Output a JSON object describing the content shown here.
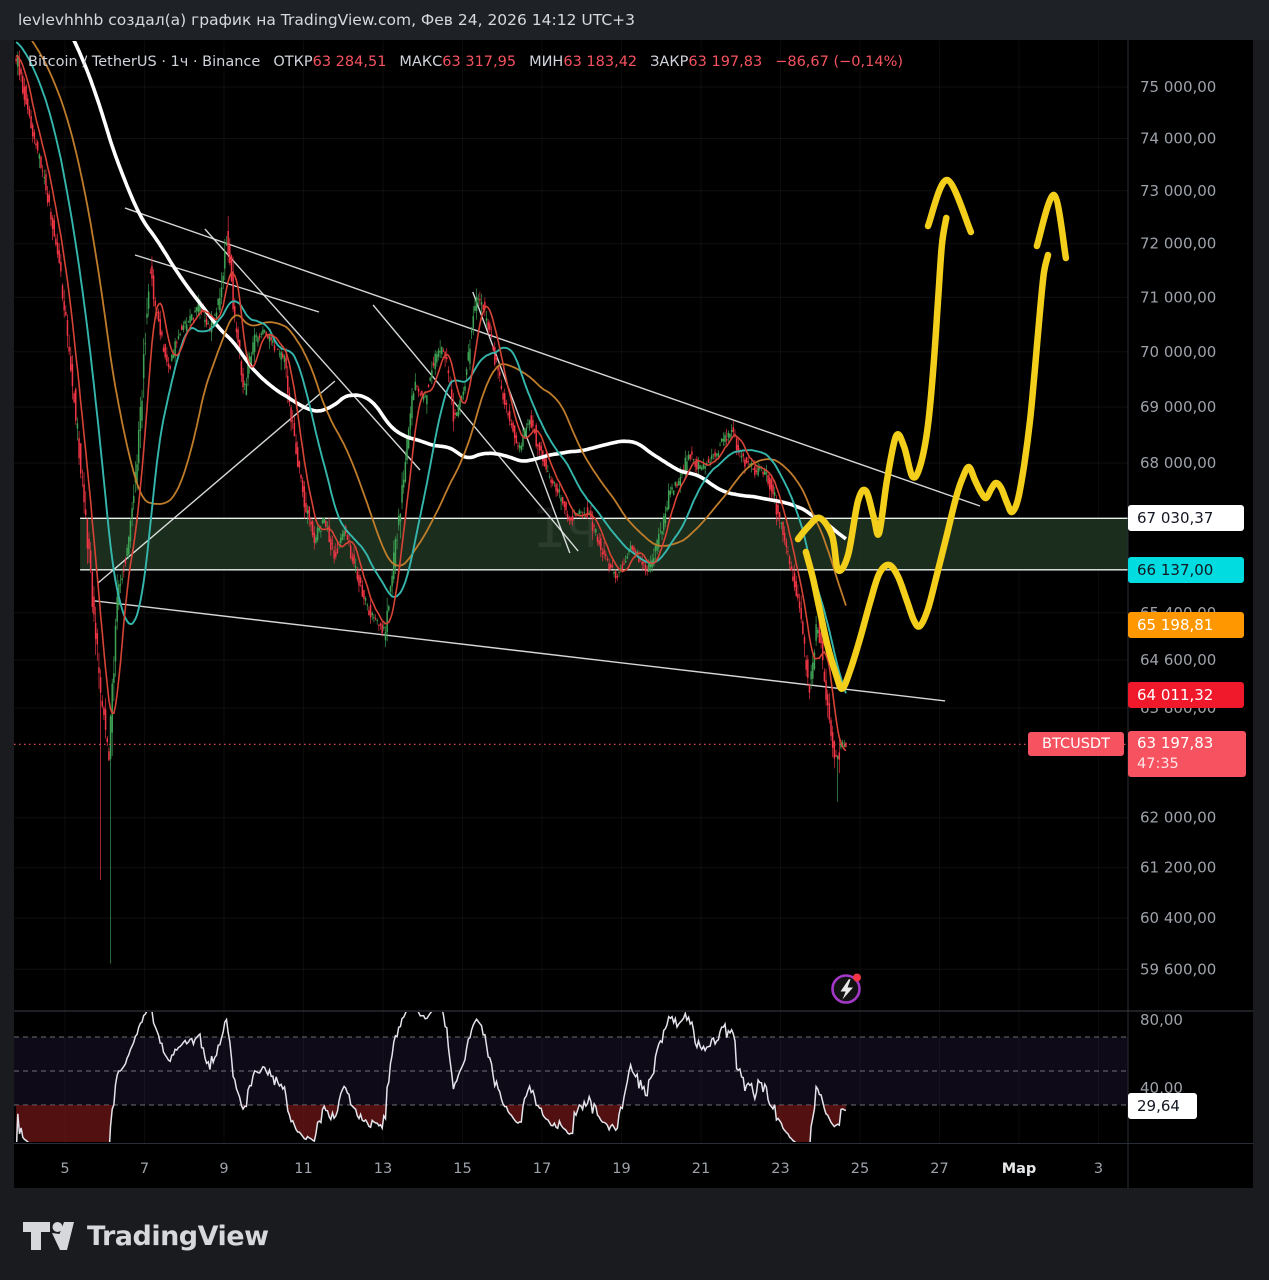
{
  "top_bar": {
    "text": "levlevhhhb создал(а) график на TradingView.com, Фев 24, 2026 14:12 UTC+3"
  },
  "legend": {
    "symbol": "Bitcoin / TetherUS · 1ч · Binance",
    "items": [
      {
        "label": "ОТКР",
        "value": "63 284,51"
      },
      {
        "label": "МАКС",
        "value": "63 317,95"
      },
      {
        "label": "МИН",
        "value": "63 183,42"
      },
      {
        "label": "ЗАКР",
        "value": "63 197,83"
      }
    ],
    "change": "−86,67 (−0,14%)"
  },
  "watermark": "1ч",
  "colors": {
    "up": "#3fa355",
    "down": "#f23645",
    "ma_white": "#ffffff",
    "ma_cyan": "#35b6ac",
    "ma_orange": "#bf7c2a",
    "ma_red": "#d64436",
    "trend": "#eceff0",
    "yellow": "#f3cf1b",
    "zone_fill": "#203622",
    "zone_border": "#eef0f0",
    "axis_text": "#9da2aa",
    "grid": "rgba(255,255,255,0.06)",
    "current_line": "#f7525f",
    "rsi_line": "#e4e4ec",
    "rsi_band": "rgba(116,82,196,0.12)",
    "bubble_ring": "#a438c8",
    "bubble_dot": "#f23645"
  },
  "price_axis": {
    "ticks": [
      {
        "price": 75000,
        "label": "75 000,00"
      },
      {
        "price": 74000,
        "label": "74 000,00"
      },
      {
        "price": 73000,
        "label": "73 000,00"
      },
      {
        "price": 72000,
        "label": "72 000,00"
      },
      {
        "price": 71000,
        "label": "71 000,00"
      },
      {
        "price": 70000,
        "label": "70 000,00"
      },
      {
        "price": 69000,
        "label": "69 000,00"
      },
      {
        "price": 68000,
        "label": "68 000,00"
      },
      {
        "price": 65400,
        "label": "65 400,00"
      },
      {
        "price": 64600,
        "label": "64 600,00"
      },
      {
        "price": 63800,
        "label": "63 800,00"
      },
      {
        "price": 62000,
        "label": "62 000,00"
      },
      {
        "price": 61200,
        "label": "61 200,00"
      },
      {
        "price": 60400,
        "label": "60 400,00"
      },
      {
        "price": 59600,
        "label": "59 600,00"
      }
    ]
  },
  "time_axis": [
    {
      "d": 5,
      "label": "5"
    },
    {
      "d": 7,
      "label": "7"
    },
    {
      "d": 9,
      "label": "9"
    },
    {
      "d": 11,
      "label": "11"
    },
    {
      "d": 13,
      "label": "13"
    },
    {
      "d": 15,
      "label": "15"
    },
    {
      "d": 17,
      "label": "17"
    },
    {
      "d": 19,
      "label": "19"
    },
    {
      "d": 21,
      "label": "21"
    },
    {
      "d": 23,
      "label": "23"
    },
    {
      "d": 25,
      "label": "25"
    },
    {
      "d": 27,
      "label": "27"
    },
    {
      "d": 29,
      "label": "Мар",
      "bold": true
    },
    {
      "d": 31,
      "label": "3"
    }
  ],
  "float_labels": [
    {
      "text": "67 030,37",
      "price": 67030.37,
      "bg": "#ffffff",
      "fg": "#131722"
    },
    {
      "text": "66 137,00",
      "price": 66137.0,
      "bg": "#00dce0",
      "fg": "#131722"
    },
    {
      "text": "65 198,81",
      "price": 65198.81,
      "bg": "#ff9800",
      "fg": "#ffffff"
    },
    {
      "text": "64 011,32",
      "price": 64011.32,
      "bg": "#f0192b",
      "fg": "#ffffff"
    }
  ],
  "current_label": {
    "symbol": "BTCUSDT",
    "price_text": "63 197,83",
    "countdown": "47:35",
    "price": 63197.83,
    "bg": "#f7525f"
  },
  "rsi_label": {
    "text": "29,64",
    "value": 29.64
  },
  "footer": {
    "brand": "TradingView"
  },
  "chart_data": {
    "type": "candlestick",
    "title": "Bitcoin / TetherUS",
    "symbol": "BTCUSDT",
    "exchange": "Binance",
    "interval": "1ч",
    "last_bar": {
      "open": 63284.51,
      "high": 63317.95,
      "low": 63183.42,
      "close": 63197.83,
      "change": -86.67,
      "change_pct": -0.14
    },
    "current_price": 63197.83,
    "visible_days": [
      3.75,
      31.7
    ],
    "zone": {
      "top": 67030.37,
      "bottom": 66137.0,
      "start_day": 5.38
    },
    "levels": [
      65198.81,
      64011.32
    ],
    "ma_periods": {
      "white": 140,
      "orange": 56,
      "cyan": 28,
      "red": 9
    },
    "price_path": [
      [
        3.82,
        75530
      ],
      [
        4.12,
        74358
      ],
      [
        4.5,
        73206
      ],
      [
        4.87,
        71694
      ],
      [
        5.25,
        69126
      ],
      [
        5.63,
        66343
      ],
      [
        5.88,
        64281
      ],
      [
        6.13,
        62951
      ],
      [
        6.33,
        65624
      ],
      [
        6.64,
        66673
      ],
      [
        6.89,
        68578
      ],
      [
        7.14,
        71600
      ],
      [
        7.39,
        70396
      ],
      [
        7.64,
        69668
      ],
      [
        7.89,
        70396
      ],
      [
        8.15,
        70580
      ],
      [
        8.4,
        70858
      ],
      [
        8.65,
        70396
      ],
      [
        8.9,
        70950
      ],
      [
        9.1,
        72218
      ],
      [
        9.28,
        70580
      ],
      [
        9.53,
        69306
      ],
      [
        9.78,
        70213
      ],
      [
        10.03,
        70396
      ],
      [
        10.28,
        70121
      ],
      [
        10.54,
        69848
      ],
      [
        10.79,
        68410
      ],
      [
        11.04,
        67348
      ],
      [
        11.29,
        66673
      ],
      [
        11.54,
        67008
      ],
      [
        11.79,
        66343
      ],
      [
        12.04,
        66840
      ],
      [
        12.3,
        66178
      ],
      [
        12.55,
        65624
      ],
      [
        12.8,
        65300
      ],
      [
        13.05,
        65055
      ],
      [
        13.3,
        66343
      ],
      [
        13.55,
        67878
      ],
      [
        13.81,
        69396
      ],
      [
        14.06,
        69126
      ],
      [
        14.31,
        69848
      ],
      [
        14.56,
        70121
      ],
      [
        14.81,
        68770
      ],
      [
        15.06,
        69306
      ],
      [
        15.31,
        70765
      ],
      [
        15.47,
        71024
      ],
      [
        15.69,
        70396
      ],
      [
        15.94,
        69486
      ],
      [
        16.2,
        68770
      ],
      [
        16.45,
        68231
      ],
      [
        16.7,
        68860
      ],
      [
        16.95,
        68231
      ],
      [
        17.2,
        67788
      ],
      [
        17.45,
        67432
      ],
      [
        17.7,
        67008
      ],
      [
        17.96,
        67177
      ],
      [
        18.21,
        67093
      ],
      [
        18.46,
        66590
      ],
      [
        18.71,
        66178
      ],
      [
        18.91,
        66013
      ],
      [
        19.09,
        66260
      ],
      [
        19.26,
        66508
      ],
      [
        19.47,
        66343
      ],
      [
        19.67,
        66096
      ],
      [
        19.84,
        66425
      ],
      [
        20.02,
        66840
      ],
      [
        20.22,
        67432
      ],
      [
        20.47,
        67699
      ],
      [
        20.72,
        68142
      ],
      [
        20.98,
        67910
      ],
      [
        21.23,
        68053
      ],
      [
        21.43,
        68231
      ],
      [
        21.63,
        68446
      ],
      [
        21.81,
        68590
      ],
      [
        21.98,
        68142
      ],
      [
        22.18,
        68017
      ],
      [
        22.36,
        67841
      ],
      [
        22.54,
        67910
      ],
      [
        22.69,
        67734
      ],
      [
        22.84,
        67486
      ],
      [
        22.99,
        67008
      ],
      [
        23.14,
        66590
      ],
      [
        23.29,
        66178
      ],
      [
        23.44,
        65624
      ],
      [
        23.59,
        64944
      ],
      [
        23.74,
        64113
      ],
      [
        23.84,
        64612
      ],
      [
        23.94,
        65267
      ],
      [
        24.04,
        64781
      ],
      [
        24.15,
        64113
      ],
      [
        24.25,
        63617
      ],
      [
        24.35,
        63115
      ],
      [
        24.45,
        62917
      ],
      [
        24.55,
        63197
      ],
      [
        24.62,
        63198
      ]
    ],
    "spikes": [
      {
        "d": 5.88,
        "low": 61000
      },
      {
        "d": 6.13,
        "low": 59690
      },
      {
        "d": 9.1,
        "high": 72520
      },
      {
        "d": 13.05,
        "low": 64820
      },
      {
        "d": 15.45,
        "high": 71110
      },
      {
        "d": 24.44,
        "low": 62260
      }
    ],
    "trendlines": [
      [
        6.51,
        72673,
        28.02,
        67244
      ],
      [
        6.76,
        71788,
        11.39,
        70730
      ],
      [
        8.52,
        72277,
        13.93,
        67879
      ],
      [
        15.26,
        71100,
        17.7,
        66426
      ],
      [
        12.75,
        70859,
        17.91,
        66460
      ],
      [
        5.75,
        65602,
        27.14,
        63916
      ],
      [
        5.83,
        65910,
        11.79,
        69468
      ]
    ],
    "annotations": {
      "stroke_a": [
        [
          23.44,
          66668
        ],
        [
          23.69,
          66877
        ],
        [
          23.99,
          67034
        ],
        [
          24.3,
          66720
        ],
        [
          24.45,
          66133
        ],
        [
          24.7,
          66393
        ],
        [
          24.95,
          67332
        ],
        [
          25.15,
          67508
        ],
        [
          25.35,
          67034
        ],
        [
          25.48,
          66772
        ],
        [
          25.68,
          67702
        ],
        [
          25.91,
          68485
        ],
        [
          26.11,
          68289
        ],
        [
          26.31,
          67773
        ],
        [
          26.49,
          67897
        ],
        [
          26.69,
          68574
        ],
        [
          26.84,
          69649
        ],
        [
          26.96,
          70913
        ],
        [
          27.06,
          71975
        ],
        [
          27.17,
          72486
        ]
      ],
      "arrow_a": [
        [
          26.71,
          72333
        ],
        [
          27.19,
          73205
        ],
        [
          27.79,
          72220
        ]
      ],
      "stroke_b": [
        [
          23.64,
          66443
        ],
        [
          23.82,
          65980
        ],
        [
          23.99,
          65432
        ],
        [
          24.19,
          64824
        ],
        [
          24.4,
          64353
        ],
        [
          24.55,
          64119
        ],
        [
          24.75,
          64420
        ],
        [
          25.0,
          64959
        ],
        [
          25.25,
          65569
        ],
        [
          25.48,
          66066
        ],
        [
          25.73,
          66221
        ],
        [
          25.96,
          66014
        ],
        [
          26.18,
          65602
        ],
        [
          26.36,
          65261
        ],
        [
          26.51,
          65176
        ],
        [
          26.71,
          65466
        ],
        [
          26.94,
          66066
        ],
        [
          27.19,
          66755
        ],
        [
          27.42,
          67403
        ],
        [
          27.59,
          67756
        ],
        [
          27.74,
          67932
        ],
        [
          27.89,
          67702
        ],
        [
          28.04,
          67491
        ],
        [
          28.17,
          67385
        ],
        [
          28.3,
          67543
        ],
        [
          28.42,
          67649
        ],
        [
          28.55,
          67561
        ],
        [
          28.7,
          67297
        ],
        [
          28.82,
          67140
        ],
        [
          28.97,
          67350
        ],
        [
          29.13,
          67967
        ],
        [
          29.28,
          68770
        ],
        [
          29.4,
          69685
        ],
        [
          29.53,
          70767
        ],
        [
          29.63,
          71470
        ],
        [
          29.73,
          71788
        ]
      ],
      "arrow_b": [
        [
          29.45,
          71957
        ],
        [
          29.88,
          72919
        ],
        [
          30.18,
          71732
        ]
      ]
    },
    "rsi": {
      "period": 14,
      "last": 29.64,
      "bands": [
        70,
        50,
        30
      ],
      "axis_ticks": [
        {
          "v": 80,
          "label": "80,00"
        },
        {
          "v": 40,
          "label": "40,00"
        }
      ]
    }
  }
}
